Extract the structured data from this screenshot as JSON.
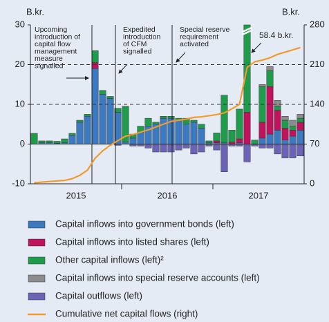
{
  "chart_data": {
    "type": "bar",
    "y_unit": "B.kr.",
    "y2_unit": "B.kr.",
    "categories": [
      null,
      null,
      null,
      null,
      null,
      null,
      null,
      null,
      null,
      null,
      null,
      null,
      null,
      null,
      null,
      null,
      null,
      null,
      null,
      null,
      null,
      null,
      null,
      null,
      null,
      null,
      null,
      null,
      null,
      null,
      null,
      null,
      null,
      null,
      null,
      null
    ],
    "year_labels": [
      "2015",
      "2016",
      "2017"
    ],
    "ylim": [
      -10,
      30
    ],
    "yticks": [
      -10,
      0,
      10,
      20,
      30
    ],
    "y2lim": [
      0,
      280
    ],
    "y2ticks": [
      0,
      70,
      140,
      210,
      280
    ],
    "grid": true,
    "series": [
      {
        "name": "Capital inflows into government bonds (left)",
        "color": "#3b79c0",
        "values": [
          0,
          0.3,
          0.3,
          0.2,
          0.3,
          2.2,
          5.5,
          7,
          19,
          12.5,
          11.5,
          8,
          0.5,
          1.5,
          3,
          4.5,
          5,
          6.5,
          6.5,
          6,
          5,
          5.5,
          4,
          0.3,
          0.3,
          0.3,
          0,
          0.3,
          0,
          0,
          1.5,
          2.5,
          3.5,
          1,
          2,
          3.5
        ]
      },
      {
        "name": "Capital inflows into listed shares (left)",
        "color": "#c0135d",
        "values": [
          0,
          0,
          0,
          0,
          0,
          0,
          0,
          0,
          1.5,
          0,
          0,
          0,
          0,
          0,
          0,
          0,
          0,
          0,
          0,
          0,
          0,
          0,
          0,
          0,
          0.5,
          0,
          0.5,
          1,
          8,
          0,
          4,
          12,
          5,
          3,
          1.5,
          2
        ]
      },
      {
        "name": "Other capital inflows (left)²",
        "color": "#1f9c4b",
        "values": [
          2.7,
          0.5,
          0.5,
          0.5,
          1,
          0.5,
          0.5,
          0.5,
          3,
          1,
          0.5,
          1,
          9,
          1,
          1.5,
          2,
          0.5,
          0.5,
          0.5,
          0.5,
          1.5,
          0.5,
          1,
          0.5,
          2,
          12,
          3,
          7.5,
          58.4,
          1,
          9,
          4,
          1,
          2,
          1,
          1
        ],
        "value_labels": [
          null,
          null,
          null,
          null,
          null,
          null,
          null,
          null,
          null,
          null,
          null,
          null,
          null,
          null,
          null,
          null,
          null,
          null,
          null,
          null,
          null,
          null,
          null,
          null,
          null,
          null,
          null,
          null,
          "58.4 b.kr.",
          null,
          null,
          null,
          null,
          null,
          null,
          null
        ]
      },
      {
        "name": "Capital inflows into special reserve accounts (left)",
        "color": "#8c8c8c",
        "values": [
          0,
          0,
          0,
          0,
          0,
          0,
          0,
          0,
          0,
          0,
          0,
          0,
          0,
          0,
          0,
          0,
          0,
          0,
          0,
          0,
          0,
          0,
          0,
          0,
          0,
          0,
          0,
          0,
          0,
          0,
          0.5,
          1,
          1.5,
          1,
          1.5,
          1
        ]
      },
      {
        "name": "Capital outflows (left)",
        "color": "#6b64b6",
        "values": [
          0,
          0,
          0,
          0,
          0,
          0,
          0,
          0,
          0,
          0,
          0,
          -0.3,
          0,
          -0.5,
          -0.5,
          -1,
          -2,
          -2,
          -2,
          -1.5,
          -1,
          -2.5,
          -2,
          -0.5,
          -1.5,
          -7,
          -0.5,
          -0.5,
          -4.5,
          -0.5,
          -1,
          -1,
          -2.5,
          -3.5,
          -3.5,
          -3
        ]
      },
      {
        "name": "Cumulative net capital flows (right)",
        "color": "#f39a2c",
        "axis": "y2",
        "values": [
          2,
          3,
          4,
          5,
          6,
          9,
          15,
          24,
          45,
          58,
          68,
          76,
          84,
          87,
          91,
          95,
          100,
          105,
          110,
          112,
          114,
          117,
          118,
          120,
          122,
          125,
          132,
          140,
          205,
          215,
          218,
          222,
          228,
          232,
          236,
          240
        ]
      }
    ],
    "annotations": [
      {
        "lines": [
          "Upcoming",
          "introduction of",
          "capital flow",
          "management",
          "measure",
          "signalled"
        ]
      },
      {
        "lines": [
          "Expedited",
          "introduction",
          "of CFM",
          "signalled"
        ]
      },
      {
        "lines": [
          "Special reserve",
          "requirement",
          "activated"
        ]
      }
    ]
  }
}
